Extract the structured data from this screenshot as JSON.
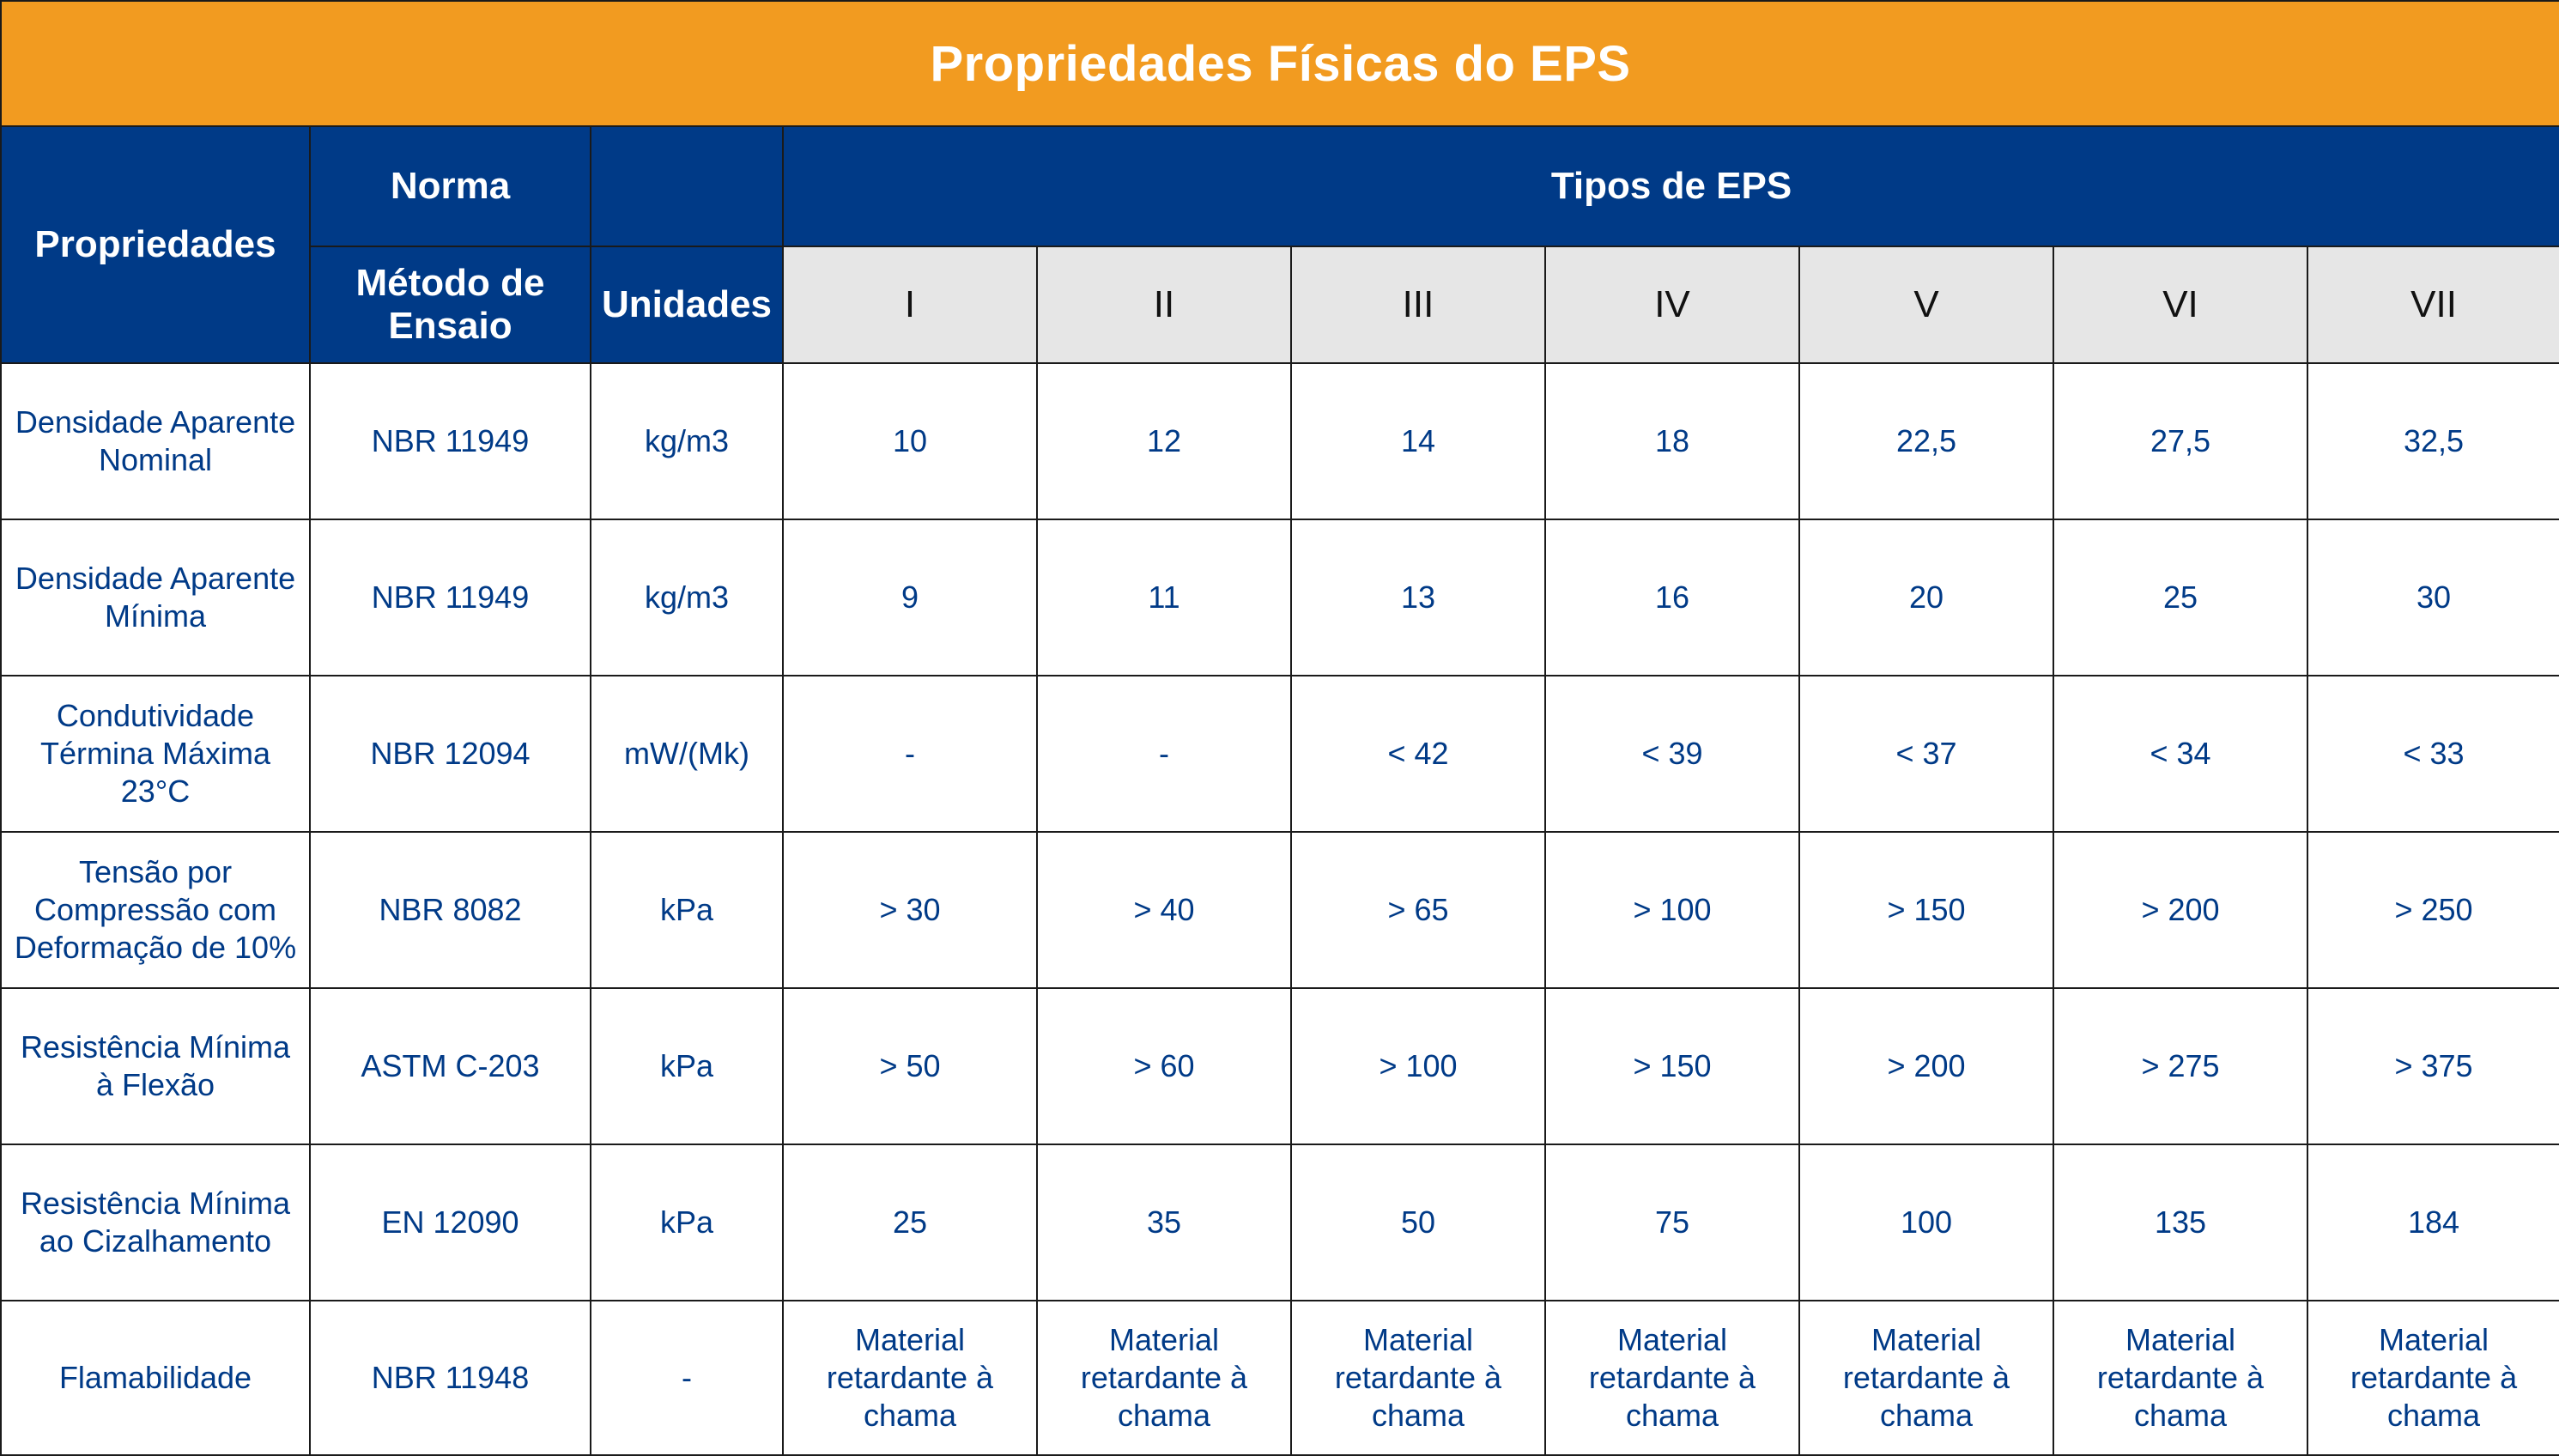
{
  "title": "Propriedades Físicas do EPS",
  "headers": {
    "propriedades": "Propriedades",
    "norma": "Norma",
    "metodo": "Método de Ensaio",
    "unidades": "Unidades",
    "tipos": "Tipos de EPS",
    "types": [
      "I",
      "II",
      "III",
      "IV",
      "V",
      "VI",
      "VII"
    ]
  },
  "rows": [
    {
      "property": "Densidade Aparente Nominal",
      "method": "NBR 11949",
      "unit": "kg/m3",
      "values": [
        "10",
        "12",
        "14",
        "18",
        "22,5",
        "27,5",
        "32,5"
      ]
    },
    {
      "property": "Densidade Aparente Mínima",
      "method": "NBR 11949",
      "unit": "kg/m3",
      "values": [
        "9",
        "11",
        "13",
        "16",
        "20",
        "25",
        "30"
      ]
    },
    {
      "property": "Condutividade Términa Máxima 23°C",
      "method": "NBR 12094",
      "unit": "mW/(Mk)",
      "values": [
        "-",
        "-",
        "< 42",
        "< 39",
        "< 37",
        "< 34",
        "< 33"
      ]
    },
    {
      "property": "Tensão por Compressão com Deformação de 10%",
      "method": "NBR 8082",
      "unit": "kPa",
      "values": [
        "> 30",
        "> 40",
        "> 65",
        "> 100",
        "> 150",
        "> 200",
        "> 250"
      ]
    },
    {
      "property": "Resistência Mínima à Flexão",
      "method": "ASTM C-203",
      "unit": "kPa",
      "values": [
        "> 50",
        "> 60",
        "> 100",
        "> 150",
        "> 200",
        "> 275",
        "> 375"
      ]
    },
    {
      "property": "Resistência Mínima ao Cizalhamento",
      "method": "EN 12090",
      "unit": "kPa",
      "values": [
        "25",
        "35",
        "50",
        "75",
        "100",
        "135",
        "184"
      ]
    },
    {
      "property": "Flamabilidade",
      "method": "NBR 11948",
      "unit": "-",
      "values": [
        "Material retardante à chama",
        "Material retardante à chama",
        "Material retardante à chama",
        "Material retardante à chama",
        "Material retardante à chama",
        "Material retardante à chama",
        "Material retardante à chama"
      ]
    }
  ]
}
